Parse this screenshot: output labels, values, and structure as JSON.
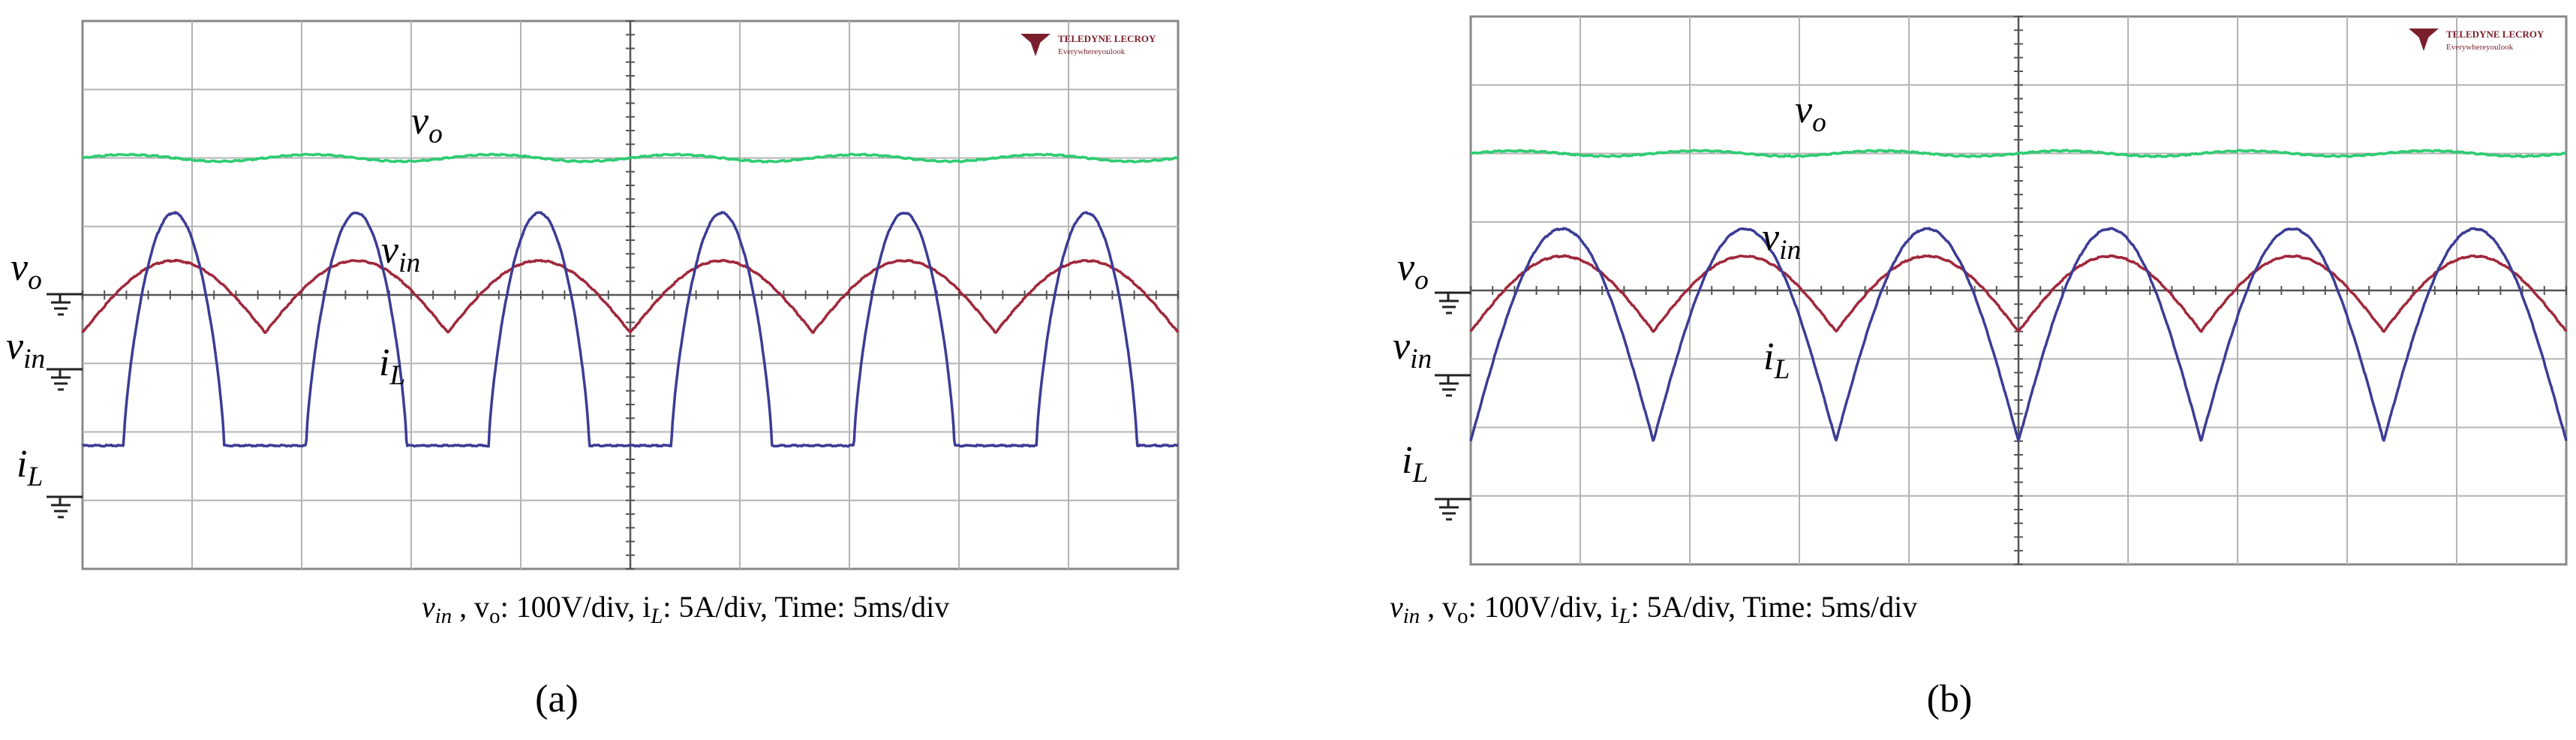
{
  "panels": [
    {
      "id": "a",
      "subcaption": "(a)",
      "brand": {
        "name": "TELEDYNE LECROY",
        "tagline": "Everywhereyoulook"
      },
      "trace_labels": {
        "vo": [
          "v",
          "o"
        ],
        "vin": [
          "v",
          "in"
        ],
        "iL": [
          "i",
          "L"
        ]
      },
      "channel_labels": {
        "vo": [
          "v",
          "o"
        ],
        "vin": [
          "v",
          "in"
        ],
        "iL": [
          "i",
          "L"
        ]
      },
      "caption": {
        "p1": "v",
        "p1s": "in",
        "p2": " , v",
        "p2s": "o",
        "p3": ": 100V/div, i",
        "p3s": "L",
        "p4": ": 5A/div, Time: 5ms/div"
      },
      "colors": {
        "vo": "#2ecc71",
        "vin": "#a0283c",
        "iL": "#3c3c96",
        "grid": "#b4b4b4",
        "frame": "#888888"
      }
    },
    {
      "id": "b",
      "subcaption": "(b)",
      "brand": {
        "name": "TELEDYNE LECROY",
        "tagline": "Everywhereyoulook"
      },
      "trace_labels": {
        "vo": [
          "v",
          "o"
        ],
        "vin": [
          "v",
          "in"
        ],
        "iL": [
          "i",
          "L"
        ]
      },
      "channel_labels": {
        "vo": [
          "v",
          "o"
        ],
        "vin": [
          "v",
          "in"
        ],
        "iL": [
          "i",
          "L"
        ]
      },
      "caption": {
        "p1": "v",
        "p1s": "in",
        "p2": " , v",
        "p2s": "o",
        "p3": ": 100V/div, i",
        "p3s": "L",
        "p4": ": 5A/div, Time: 5ms/div"
      },
      "colors": {
        "vo": "#2ecc71",
        "vin": "#a0283c",
        "iL": "#3c3c96",
        "grid": "#b4b4b4",
        "frame": "#888888"
      }
    }
  ],
  "chart_data": [
    {
      "type": "line",
      "panel": "a",
      "x_unit": "div (5 ms/div)",
      "xlim": [
        0,
        10
      ],
      "ylim": [
        -4,
        4
      ],
      "series": [
        {
          "name": "vo",
          "kind": "dc_ripple",
          "level_div": 2.0,
          "ripple_div": 0.05,
          "cycles": 6
        },
        {
          "name": "vin",
          "kind": "rectified_sine_offset",
          "zero_div": -0.2,
          "peak_div": 0.5,
          "valley_div": -0.55,
          "cycles": 6
        },
        {
          "name": "iL",
          "kind": "dcm_pulses",
          "zero_div": -2.2,
          "peak_div": 1.2,
          "cycles": 6,
          "duty": 0.55
        }
      ]
    },
    {
      "type": "line",
      "panel": "b",
      "x_unit": "div (5 ms/div)",
      "xlim": [
        0,
        10
      ],
      "ylim": [
        -4,
        4
      ],
      "series": [
        {
          "name": "vo",
          "kind": "dc_ripple",
          "level_div": 2.0,
          "ripple_div": 0.04,
          "cycles": 6
        },
        {
          "name": "vin",
          "kind": "rectified_sine_offset",
          "zero_div": -0.2,
          "peak_div": 0.5,
          "valley_div": -0.6,
          "cycles": 6
        },
        {
          "name": "iL",
          "kind": "ccm_rectified",
          "zero_div": -2.2,
          "peak_div": 0.9,
          "cycles": 6,
          "duty": 1.0
        }
      ]
    }
  ]
}
